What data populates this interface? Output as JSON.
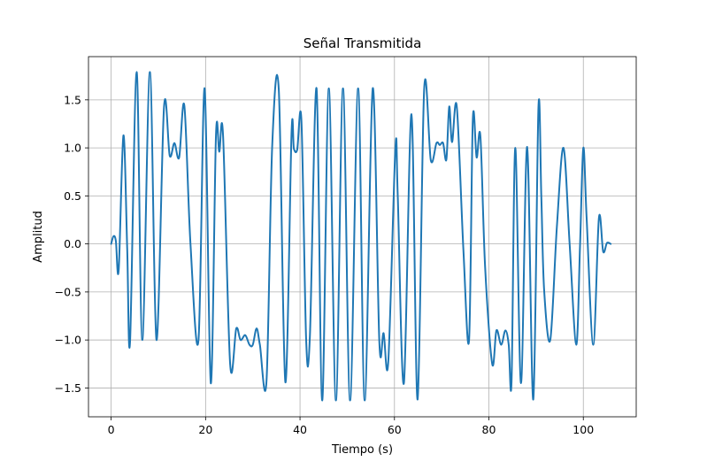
{
  "chart_data": {
    "type": "line",
    "title": "Señal Transmitida",
    "xlabel": "Tiempo (s)",
    "ylabel": "Amplitud",
    "xlim": [
      -4.8,
      111.2
    ],
    "ylim": [
      -1.8,
      1.95
    ],
    "xticks": [
      0,
      20,
      40,
      60,
      80,
      100
    ],
    "xtick_labels": [
      "0",
      "20",
      "40",
      "60",
      "80",
      "100"
    ],
    "yticks": [
      -1.5,
      -1.0,
      -0.5,
      0.0,
      0.5,
      1.0,
      1.5
    ],
    "ytick_labels": [
      "−1.5",
      "−1.0",
      "−0.5",
      "0.0",
      "0.5",
      "1.0",
      "1.5"
    ],
    "grid": true,
    "series": [
      {
        "color": "#1f77b4",
        "x": [
          0,
          0.5,
          1,
          1.6,
          2.6,
          3.4,
          4,
          5.4,
          6.6,
          8.2,
          9.6,
          11.2,
          12.4,
          13.4,
          14.4,
          15.5,
          16.8,
          18.5,
          19.8,
          21.1,
          22.2,
          22.9,
          23.7,
          25.2,
          26.5,
          27.4,
          28.4,
          29.3,
          30,
          30.8,
          31.5,
          32.9,
          34.1,
          35.5,
          36.9,
          38.2,
          38.7,
          39.4,
          40.3,
          41.3,
          42.1,
          43.5,
          44.7,
          46.1,
          47.6,
          49.1,
          50.6,
          52.3,
          53.7,
          55.4,
          56.8,
          57.7,
          58.7,
          60.2,
          60.7,
          62,
          63.6,
          64.9,
          66.3,
          67.7,
          68.9,
          69.6,
          70.3,
          71,
          71.6,
          72.2,
          73.2,
          74.6,
          75.8,
          76.6,
          77.4,
          78.2,
          79.2,
          80.7,
          81.6,
          82.6,
          83.5,
          84.2,
          84.8,
          85.6,
          86.8,
          88.1,
          89.4,
          90.5,
          91.1,
          91.7,
          93,
          94.4,
          95.8,
          97.1,
          98.5,
          99.3,
          100,
          100.7,
          102.1,
          103.3,
          104.2,
          105,
          105.8
        ],
        "y": [
          0,
          0.08,
          0.03,
          -0.27,
          1.13,
          -0.05,
          -1.02,
          1.79,
          -1,
          1.79,
          -1,
          1.43,
          0.92,
          1.05,
          0.9,
          1.44,
          0,
          -1,
          1.62,
          -1.45,
          1.13,
          0.96,
          1.13,
          -1.25,
          -0.88,
          -1,
          -0.95,
          -1.05,
          -1.05,
          -0.88,
          -1.05,
          -1.43,
          1.01,
          1.61,
          -1.44,
          1.15,
          0.99,
          0.98,
          1.28,
          -1.0,
          -0.95,
          1.62,
          -1.63,
          1.62,
          -1.63,
          1.62,
          -1.63,
          1.62,
          -1.63,
          1.62,
          -1.02,
          -0.93,
          -1.22,
          1.0,
          0.5,
          -1.45,
          1.35,
          -1.62,
          1.62,
          0.87,
          1.05,
          1.03,
          1.05,
          0.88,
          1.43,
          1.06,
          1.43,
          -0.06,
          -1.0,
          1.3,
          0.9,
          1.12,
          -0.24,
          -1.25,
          -0.9,
          -1.05,
          -0.9,
          -1.05,
          -1.43,
          1.0,
          -1.45,
          1.01,
          -1.62,
          1.43,
          0.5,
          -0.48,
          -1.0,
          0.18,
          1.0,
          0.0,
          -1.05,
          -0.02,
          1.0,
          0.27,
          -1.05,
          0.27,
          -0.08,
          0.01,
          0.0
        ]
      }
    ]
  }
}
